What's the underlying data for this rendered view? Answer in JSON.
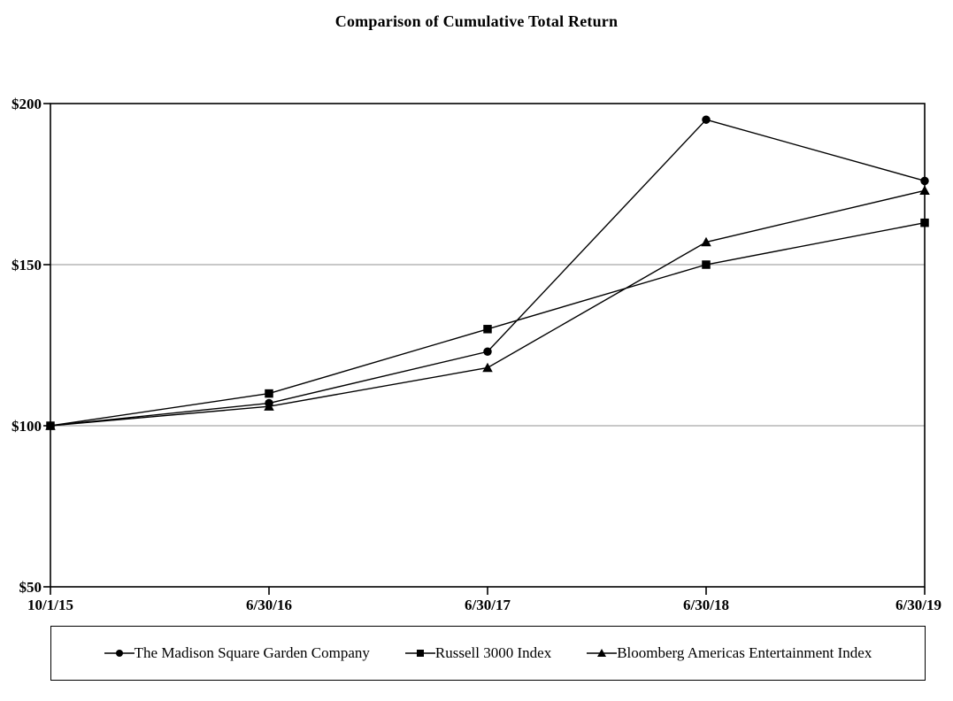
{
  "title": "Comparison of Cumulative Total Return",
  "chart_data": {
    "type": "line",
    "x_labels": [
      "10/1/15",
      "6/30/16",
      "6/30/17",
      "6/30/18",
      "6/30/19"
    ],
    "ylim": [
      50,
      200
    ],
    "y_step": 50,
    "y_tick_labels": [
      "$50",
      "$100",
      "$150",
      "$200"
    ],
    "y_tick_prefix": "$",
    "grid_values": [
      100,
      150
    ],
    "grid_on": true,
    "legend_position": "bottom",
    "series": [
      {
        "name": "The Madison Square Garden Company",
        "marker": "circle",
        "values": [
          100,
          107,
          123,
          195,
          176
        ]
      },
      {
        "name": "Russell 3000 Index",
        "marker": "square",
        "values": [
          100,
          110,
          130,
          150,
          163
        ]
      },
      {
        "name": "Bloomberg Americas Entertainment Index",
        "marker": "triangle",
        "values": [
          100,
          106,
          118,
          157,
          173
        ]
      }
    ],
    "colors": {
      "line": "#000000",
      "marker": "#000000",
      "grid": "#a6a6a6",
      "text": "#000000",
      "border": "#000000",
      "background": "#ffffff"
    }
  }
}
